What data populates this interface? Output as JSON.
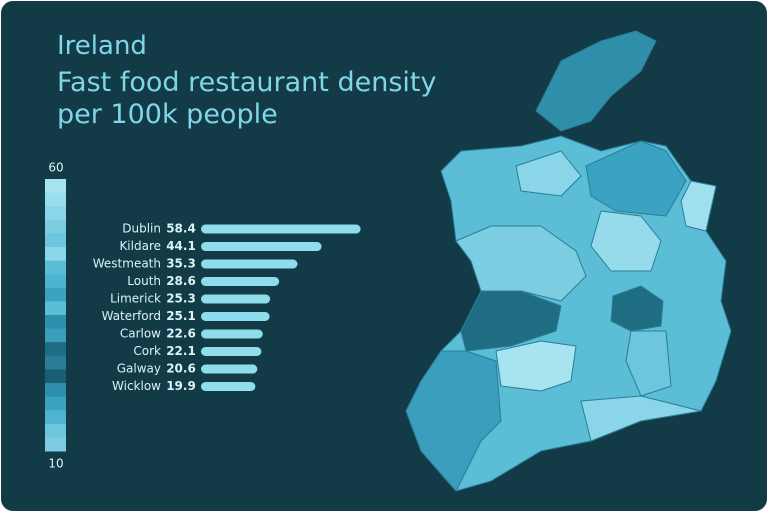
{
  "chart_data": {
    "type": "hbar",
    "title": "Ireland",
    "subtitle": "Fast food restaurant density per 100k people",
    "categories": [
      "Dublin",
      "Kildare",
      "Westmeath",
      "Louth",
      "Limerick",
      "Waterford",
      "Carlow",
      "Cork",
      "Galway",
      "Wicklow"
    ],
    "values": [
      58.4,
      44.1,
      35.3,
      28.6,
      25.3,
      25.1,
      22.6,
      22.1,
      20.6,
      19.9
    ],
    "color": "#8fdcec",
    "xlim": [
      0,
      60
    ],
    "colorbar": {
      "max": 60,
      "min": 10
    }
  }
}
